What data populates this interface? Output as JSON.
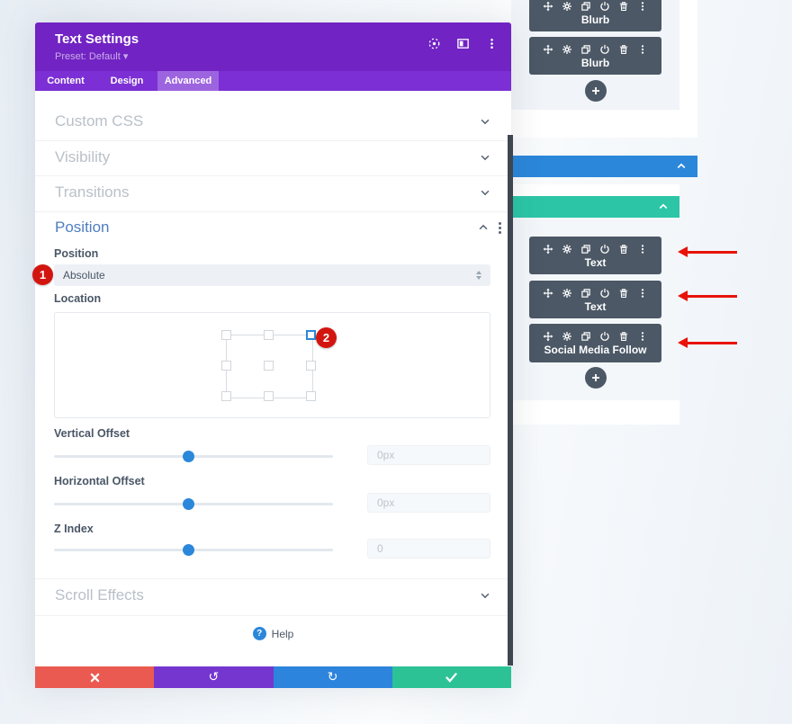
{
  "annotations": {
    "step1": "1",
    "step2": "2"
  },
  "modal": {
    "title": "Text Settings",
    "preset": "Preset: Default",
    "tabs": [
      {
        "label": "Content"
      },
      {
        "label": "Design"
      },
      {
        "label": "Advanced"
      }
    ],
    "active_tab": "Advanced",
    "collapsed_sections_top": [
      {
        "label": "Custom CSS"
      },
      {
        "label": "Visibility"
      },
      {
        "label": "Transitions"
      }
    ],
    "position_section": {
      "title": "Position",
      "position_label": "Position",
      "position_value": "Absolute",
      "location_label": "Location",
      "location_selected": "top-right",
      "sliders": [
        {
          "label": "Vertical Offset",
          "value": "0px",
          "percent": 48
        },
        {
          "label": "Horizontal Offset",
          "value": "0px",
          "percent": 48
        },
        {
          "label": "Z Index",
          "value": "0",
          "percent": 48
        }
      ]
    },
    "scroll_effects_section": {
      "label": "Scroll Effects"
    },
    "help_label": "Help",
    "footer_icons": {
      "undo": "↺",
      "redo": "↻",
      "save": "✓"
    }
  },
  "canvas": {
    "modules_top": [
      {
        "label": "Blurb"
      },
      {
        "label": "Blurb"
      }
    ],
    "modules_bottom": [
      {
        "label": "Text"
      },
      {
        "label": "Text"
      },
      {
        "label": "Social Media Follow"
      }
    ],
    "toolbar_icons": [
      "move",
      "settings",
      "duplicate",
      "disable",
      "delete",
      "options"
    ],
    "add_button": "+"
  },
  "colors": {
    "accent_blue": "#2b87da",
    "header_purple": "#7123c3",
    "active_tab_purple": "#9d64e0",
    "section_bar_blue": "#2b87da",
    "row_bar_teal": "#2cc6a6",
    "module_gray": "#4c5866",
    "annotation_red": "#d31510",
    "arrow_red": "#e81309"
  }
}
